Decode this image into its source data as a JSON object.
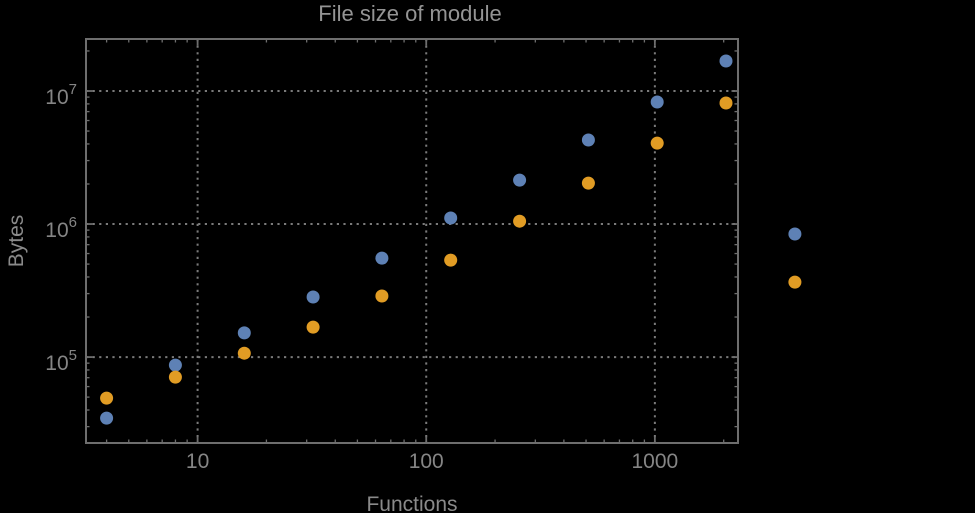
{
  "colors": {
    "background": "#000000",
    "frame": "#6e6e6e",
    "grid": "#7a7a7a",
    "tick_text": "#858585",
    "axis_label_text": "#8a8a8a",
    "title_text": "#949494",
    "series_1": "#5e81b5",
    "series_2": "#e19c24"
  },
  "chart_data": {
    "type": "scatter",
    "title": "File size of module",
    "xlabel": "Functions",
    "ylabel": "Bytes",
    "x_scale": "log",
    "y_scale": "log",
    "xlim": [
      3.25,
      2310
    ],
    "ylim": [
      22600,
      24600000
    ],
    "grid": "dotted",
    "legend": "none",
    "x": [
      4,
      8,
      16,
      32,
      64,
      128,
      256,
      512,
      1024,
      2048,
      4096
    ],
    "series": [
      {
        "name": "series-1-blue",
        "color_key": "series_1",
        "values": [
          34800,
          87100,
          152000,
          283000,
          555000,
          1110000,
          2140000,
          4280000,
          8270000,
          16800000,
          841000
        ]
      },
      {
        "name": "series-2-orange",
        "color_key": "series_2",
        "values": [
          49200,
          70700,
          107000,
          168000,
          288000,
          536000,
          1050000,
          2030000,
          4060000,
          8120000,
          366000
        ]
      }
    ],
    "x_ticks": [
      {
        "value": 10,
        "label": "10"
      },
      {
        "value": 100,
        "label": "100"
      },
      {
        "value": 1000,
        "label": "1000"
      }
    ],
    "y_ticks": [
      {
        "value": 100000,
        "mantissa": "10",
        "exponent": "5"
      },
      {
        "value": 1000000,
        "mantissa": "10",
        "exponent": "6"
      },
      {
        "value": 10000000,
        "mantissa": "10",
        "exponent": "7"
      }
    ]
  }
}
